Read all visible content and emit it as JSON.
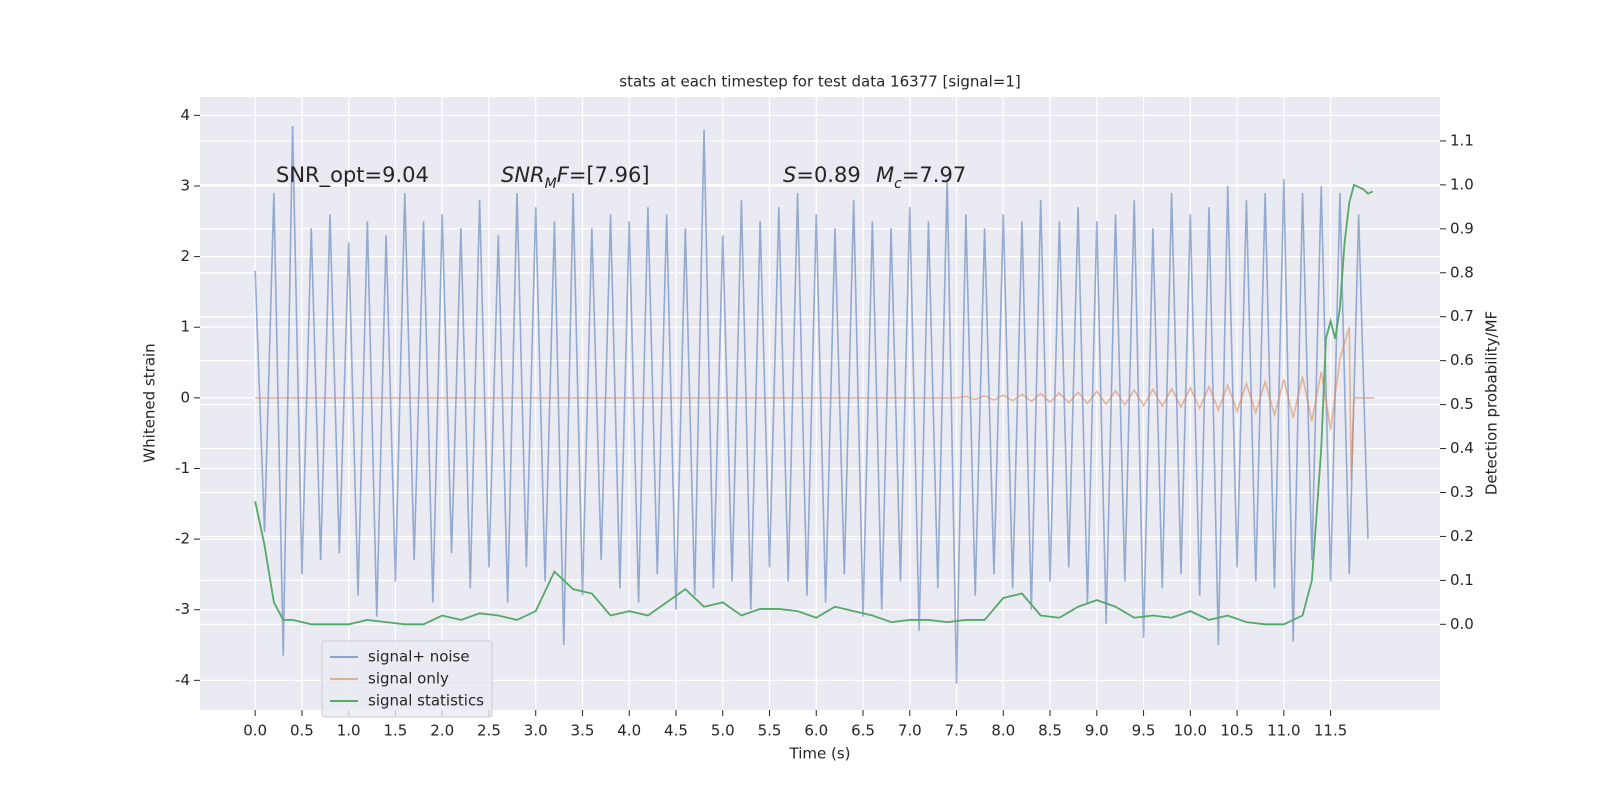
{
  "chart_data": {
    "type": "line",
    "title": "stats at each timestep for test data 16377 [signal=1]",
    "x_label": "Time (s)",
    "y_label": "Whitened strain",
    "y2_label": "Detection probability/MF",
    "xlim": [
      -0.59,
      12.67
    ],
    "ylim": [
      -4.42,
      4.26
    ],
    "y2lim": [
      -0.195,
      1.2
    ],
    "xticks": [
      {
        "value": 0,
        "label": "0.0"
      },
      0.5,
      {
        "value": 1,
        "label": "1.0"
      },
      1.5,
      {
        "value": 2,
        "label": "2.0"
      },
      2.5,
      {
        "value": 3,
        "label": "3.0"
      },
      3.5,
      {
        "value": 4,
        "label": "4.0"
      },
      4.5,
      {
        "value": 5,
        "label": "5.0"
      },
      5.5,
      {
        "value": 6,
        "label": "6.0"
      },
      6.5,
      {
        "value": 7,
        "label": "7.0"
      },
      7.5,
      {
        "value": 8,
        "label": "8.0"
      },
      8.5,
      {
        "value": 9,
        "label": "9.0"
      },
      9.5,
      {
        "value": 10,
        "label": "10.0"
      },
      10.5,
      {
        "value": 11,
        "label": "11.0"
      },
      11.5
    ],
    "yticks": [
      -4,
      -3,
      -2,
      -1,
      0,
      1,
      2,
      3,
      4
    ],
    "y2ticks": [
      {
        "value": 0,
        "label": "0.0"
      },
      0.1,
      0.2,
      0.3,
      0.4,
      0.5,
      0.6,
      0.7,
      0.8,
      0.9,
      {
        "value": 1,
        "label": "1.0"
      },
      1.1
    ],
    "grid": true,
    "legend": "lower left",
    "annotations": [
      [
        {
          "text": "SNR_opt=9.04",
          "style": "normal"
        }
      ],
      [
        {
          "text": "SNR",
          "style": "italic"
        },
        {
          "text": "M",
          "style": "sub"
        },
        {
          "text": "F",
          "style": "italic"
        },
        {
          "text": "=[7.96]",
          "style": "normal"
        }
      ],
      [
        {
          "text": "S",
          "style": "italic"
        },
        {
          "text": "=0.89",
          "style": "normal"
        }
      ],
      [
        {
          "text": "M",
          "style": "italic"
        },
        {
          "text": "c",
          "style": "sub"
        },
        {
          "text": "=7.97",
          "style": "normal"
        }
      ]
    ],
    "series": [
      {
        "name": "signal+ noise",
        "color": "#4c72b0",
        "axis": "y",
        "x": [
          0,
          0.1,
          0.2,
          0.3,
          0.4,
          0.5,
          0.6,
          0.7,
          0.8,
          0.9,
          1,
          1.1,
          1.2,
          1.3,
          1.4,
          1.5,
          1.6,
          1.7,
          1.8,
          1.9,
          2,
          2.1,
          2.2,
          2.3,
          2.4,
          2.5,
          2.6,
          2.7,
          2.8,
          2.9,
          3,
          3.1,
          3.2,
          3.3,
          3.4,
          3.5,
          3.6,
          3.7,
          3.8,
          3.9,
          4,
          4.1,
          4.2,
          4.3,
          4.4,
          4.5,
          4.6,
          4.7,
          4.8,
          4.9,
          5,
          5.1,
          5.2,
          5.3,
          5.4,
          5.5,
          5.6,
          5.7,
          5.8,
          5.9,
          6,
          6.1,
          6.2,
          6.3,
          6.4,
          6.5,
          6.6,
          6.7,
          6.8,
          6.9,
          7,
          7.1,
          7.2,
          7.3,
          7.4,
          7.5,
          7.6,
          7.7,
          7.8,
          7.9,
          8,
          8.1,
          8.2,
          8.3,
          8.4,
          8.5,
          8.6,
          8.7,
          8.8,
          8.9,
          9,
          9.1,
          9.2,
          9.3,
          9.4,
          9.5,
          9.6,
          9.7,
          9.8,
          9.9,
          10,
          10.1,
          10.2,
          10.3,
          10.4,
          10.5,
          10.6,
          10.7,
          10.8,
          10.9,
          11,
          11.1,
          11.2,
          11.3,
          11.4,
          11.5,
          11.6,
          11.7,
          11.8,
          11.9
        ],
        "values": [
          1.8,
          -1.9,
          2.9,
          -3.65,
          3.85,
          -2.5,
          2.4,
          -2.3,
          2.6,
          -2.2,
          2.2,
          -2.8,
          2.5,
          -3.1,
          2.3,
          -2.6,
          2.9,
          -2.3,
          2.5,
          -2.9,
          2.6,
          -2.2,
          2.4,
          -2.7,
          2.8,
          -2.4,
          2.3,
          -2.9,
          2.9,
          -2.4,
          2.7,
          -2.6,
          2.5,
          -3.5,
          2.9,
          -2.8,
          2.4,
          -2.3,
          2.6,
          -2.7,
          2.5,
          -2.9,
          2.7,
          -2.5,
          2.6,
          -3.0,
          2.4,
          -2.8,
          3.8,
          -2.7,
          2.3,
          -2.6,
          2.8,
          -3.0,
          2.5,
          -2.4,
          2.7,
          -2.6,
          2.9,
          -2.8,
          2.6,
          -2.9,
          2.4,
          -2.5,
          2.8,
          -3.1,
          2.5,
          -3.0,
          2.4,
          -2.6,
          2.7,
          -3.3,
          2.5,
          -2.7,
          3.1,
          -4.05,
          2.6,
          -2.8,
          2.4,
          -2.5,
          2.6,
          -2.7,
          2.5,
          -3.0,
          2.8,
          -2.6,
          2.5,
          -2.4,
          2.7,
          -2.9,
          2.5,
          -3.2,
          2.6,
          -2.6,
          2.8,
          -3.4,
          2.4,
          -2.7,
          2.9,
          -2.5,
          2.6,
          -2.8,
          2.7,
          -3.5,
          3.0,
          -2.4,
          2.8,
          -2.6,
          2.9,
          -2.7,
          3.1,
          -3.45,
          2.9,
          -2.3,
          3.0,
          -2.6,
          2.9,
          -2.5,
          2.6,
          -2.0
        ]
      },
      {
        "name": "signal only",
        "color": "#dd8452",
        "axis": "y",
        "x": [
          0,
          7.5,
          7.6,
          7.7,
          7.8,
          7.9,
          8,
          8.1,
          8.2,
          8.3,
          8.4,
          8.5,
          8.6,
          8.7,
          8.8,
          8.9,
          9,
          9.1,
          9.2,
          9.3,
          9.4,
          9.5,
          9.6,
          9.7,
          9.8,
          9.9,
          10,
          10.1,
          10.2,
          10.3,
          10.4,
          10.5,
          10.6,
          10.7,
          10.8,
          10.9,
          11,
          11.1,
          11.2,
          11.3,
          11.4,
          11.5,
          11.6,
          11.7,
          11.72,
          11.75,
          11.97
        ],
        "values": [
          0,
          0,
          0.02,
          -0.02,
          0.03,
          -0.03,
          0.04,
          -0.04,
          0.05,
          -0.05,
          0.06,
          -0.06,
          0.07,
          -0.07,
          0.08,
          -0.08,
          0.09,
          -0.09,
          0.1,
          -0.1,
          0.11,
          -0.11,
          0.12,
          -0.12,
          0.13,
          -0.13,
          0.14,
          -0.15,
          0.16,
          -0.17,
          0.18,
          -0.19,
          0.2,
          -0.21,
          0.23,
          -0.24,
          0.26,
          -0.28,
          0.3,
          -0.33,
          0.37,
          -0.45,
          0.55,
          1.0,
          -1.15,
          0,
          0
        ]
      },
      {
        "name": "signal statistics",
        "color": "#55a868",
        "axis": "y2",
        "x": [
          0,
          0.1,
          0.2,
          0.3,
          0.4,
          0.6,
          0.8,
          1,
          1.2,
          1.4,
          1.6,
          1.8,
          2,
          2.2,
          2.4,
          2.6,
          2.8,
          3,
          3.2,
          3.4,
          3.6,
          3.8,
          4,
          4.2,
          4.4,
          4.6,
          4.8,
          5,
          5.2,
          5.4,
          5.6,
          5.8,
          6,
          6.2,
          6.4,
          6.6,
          6.8,
          7,
          7.2,
          7.4,
          7.6,
          7.8,
          8,
          8.2,
          8.4,
          8.6,
          8.8,
          9,
          9.2,
          9.4,
          9.6,
          9.8,
          10,
          10.2,
          10.4,
          10.6,
          10.8,
          11,
          11.2,
          11.3,
          11.4,
          11.45,
          11.5,
          11.55,
          11.6,
          11.65,
          11.7,
          11.75,
          11.8,
          11.85,
          11.9,
          11.95
        ],
        "values": [
          0.28,
          0.18,
          0.05,
          0.01,
          0.01,
          0,
          0,
          0,
          0.01,
          0.005,
          0,
          0,
          0.02,
          0.01,
          0.025,
          0.02,
          0.01,
          0.03,
          0.12,
          0.08,
          0.07,
          0.02,
          0.03,
          0.02,
          0.05,
          0.08,
          0.04,
          0.05,
          0.02,
          0.035,
          0.035,
          0.03,
          0.015,
          0.04,
          0.03,
          0.02,
          0.005,
          0.01,
          0.01,
          0.005,
          0.01,
          0.01,
          0.06,
          0.07,
          0.02,
          0.015,
          0.04,
          0.055,
          0.04,
          0.015,
          0.02,
          0.015,
          0.03,
          0.01,
          0.02,
          0.005,
          0,
          0,
          0.02,
          0.1,
          0.4,
          0.65,
          0.69,
          0.65,
          0.72,
          0.87,
          0.96,
          1.0,
          0.995,
          0.99,
          0.98,
          0.985
        ]
      }
    ]
  }
}
